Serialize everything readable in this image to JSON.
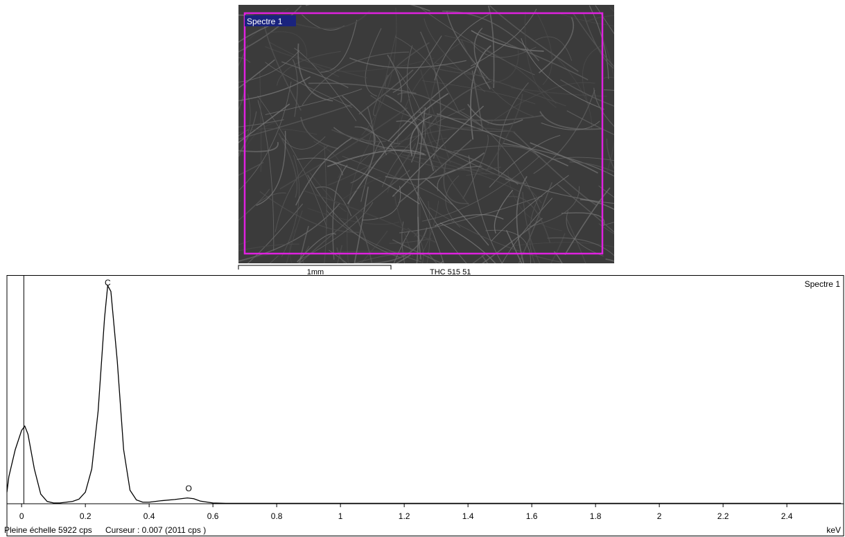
{
  "image": {
    "region_label": "Spectre 1",
    "scale_label": "1mm",
    "sample_label": "THC 515 51"
  },
  "chart_data": {
    "type": "line",
    "title": "Spectre 1",
    "x_unit": "keV",
    "x": [
      -0.046,
      -0.04,
      -0.02,
      0.0,
      0.01,
      0.02,
      0.04,
      0.06,
      0.08,
      0.1,
      0.12,
      0.14,
      0.16,
      0.18,
      0.2,
      0.22,
      0.24,
      0.26,
      0.27,
      0.28,
      0.3,
      0.32,
      0.34,
      0.36,
      0.38,
      0.4,
      0.44,
      0.48,
      0.52,
      0.54,
      0.56,
      0.6,
      0.64,
      1.15,
      2.57
    ],
    "series": [
      {
        "name": "Spectre 1",
        "color": "#000000",
        "values": [
          300,
          700,
          1400,
          1900,
          2011,
          1800,
          900,
          250,
          60,
          20,
          20,
          40,
          60,
          120,
          300,
          900,
          2400,
          4800,
          5650,
          5500,
          3700,
          1400,
          350,
          100,
          40,
          40,
          80,
          110,
          150,
          130,
          70,
          20,
          10,
          10,
          10
        ]
      }
    ],
    "xlim": [
      -0.046,
      2.578
    ],
    "ylim": [
      0,
      5922
    ],
    "xticks": [
      0,
      0.2,
      0.4,
      0.6,
      0.8,
      1,
      1.2,
      1.4,
      1.6,
      1.8,
      2,
      2.2,
      2.4
    ],
    "cursor": 0.007,
    "annotations": [
      {
        "text": "C",
        "x": 0.27,
        "y": 5650
      },
      {
        "text": "O",
        "x": 0.524,
        "y": 320
      }
    ],
    "footer": {
      "full_scale": "Pleine échelle 5922 cps",
      "cursor": "Curseur : 0.007  (2011 cps )"
    }
  }
}
